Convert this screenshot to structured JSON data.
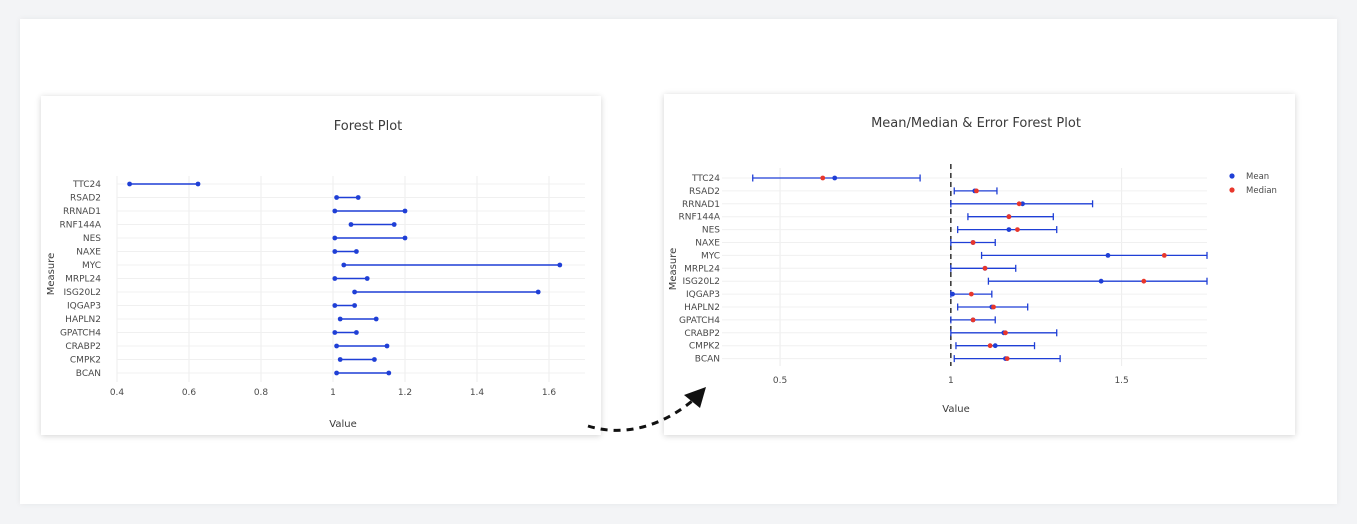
{
  "chart_data": [
    {
      "type": "forest",
      "title": "Forest Plot",
      "xlabel": "Value",
      "ylabel": "Measure",
      "xlim": [
        0.4,
        1.7
      ],
      "xticks": [
        0.4,
        0.6,
        0.8,
        1,
        1.2,
        1.4,
        1.6
      ],
      "xtick_labels": [
        "0.4",
        "0.6",
        "0.8",
        "1",
        "1.2",
        "1.4",
        "1.6"
      ],
      "grid": true,
      "color": "#1f3fd6",
      "rows": [
        {
          "label": "TTC24",
          "low": 0.435,
          "high": 0.625
        },
        {
          "label": "RSAD2",
          "low": 1.01,
          "high": 1.07
        },
        {
          "label": "RRNAD1",
          "low": 1.005,
          "high": 1.2
        },
        {
          "label": "RNF144A",
          "low": 1.05,
          "high": 1.17
        },
        {
          "label": "NES",
          "low": 1.005,
          "high": 1.2
        },
        {
          "label": "NAXE",
          "low": 1.005,
          "high": 1.065
        },
        {
          "label": "MYC",
          "low": 1.03,
          "high": 1.63
        },
        {
          "label": "MRPL24",
          "low": 1.005,
          "high": 1.095
        },
        {
          "label": "ISG20L2",
          "low": 1.06,
          "high": 1.57
        },
        {
          "label": "IQGAP3",
          "low": 1.005,
          "high": 1.06
        },
        {
          "label": "HAPLN2",
          "low": 1.02,
          "high": 1.12
        },
        {
          "label": "GPATCH4",
          "low": 1.005,
          "high": 1.065
        },
        {
          "label": "CRABP2",
          "low": 1.01,
          "high": 1.15
        },
        {
          "label": "CMPK2",
          "low": 1.02,
          "high": 1.115
        },
        {
          "label": "BCAN",
          "low": 1.01,
          "high": 1.155
        }
      ]
    },
    {
      "type": "forest",
      "title": "Mean/Median & Error Forest Plot",
      "xlabel": "Value",
      "ylabel": "Measure",
      "xlim": [
        0.33,
        1.75
      ],
      "xticks": [
        0.5,
        1,
        1.5
      ],
      "xtick_labels": [
        "0.5",
        "1",
        "1.5"
      ],
      "reference_line": 1,
      "grid": true,
      "legend": {
        "placement": "top-right",
        "items": [
          {
            "name": "Mean",
            "color": "#1f3fd6"
          },
          {
            "name": "Median",
            "color": "#e8372c"
          }
        ]
      },
      "rows": [
        {
          "label": "TTC24",
          "mean": 0.66,
          "median": 0.625,
          "low": 0.42,
          "high": 0.91
        },
        {
          "label": "RSAD2",
          "mean": 1.07,
          "median": 1.075,
          "low": 1.01,
          "high": 1.135
        },
        {
          "label": "RRNAD1",
          "mean": 1.21,
          "median": 1.2,
          "low": 1.0,
          "high": 1.415
        },
        {
          "label": "RNF144A",
          "mean": 1.17,
          "median": 1.17,
          "low": 1.05,
          "high": 1.3
        },
        {
          "label": "NES",
          "mean": 1.17,
          "median": 1.195,
          "low": 1.02,
          "high": 1.31
        },
        {
          "label": "NAXE",
          "mean": 1.065,
          "median": 1.065,
          "low": 1.0,
          "high": 1.13
        },
        {
          "label": "MYC",
          "mean": 1.46,
          "median": 1.625,
          "low": 1.09,
          "high": 1.835
        },
        {
          "label": "MRPL24",
          "mean": 1.1,
          "median": 1.1,
          "low": 1.0,
          "high": 1.19
        },
        {
          "label": "ISG20L2",
          "mean": 1.44,
          "median": 1.565,
          "low": 1.11,
          "high": 1.765
        },
        {
          "label": "IQGAP3",
          "mean": 1.005,
          "median": 1.06,
          "low": 1.0,
          "high": 1.12
        },
        {
          "label": "HAPLN2",
          "mean": 1.12,
          "median": 1.125,
          "low": 1.02,
          "high": 1.225
        },
        {
          "label": "GPATCH4",
          "mean": 1.065,
          "median": 1.065,
          "low": 1.0,
          "high": 1.13
        },
        {
          "label": "CRABP2",
          "mean": 1.155,
          "median": 1.16,
          "low": 1.0,
          "high": 1.31
        },
        {
          "label": "CMPK2",
          "mean": 1.13,
          "median": 1.115,
          "low": 1.015,
          "high": 1.245
        },
        {
          "label": "BCAN",
          "mean": 1.16,
          "median": 1.165,
          "low": 1.01,
          "high": 1.32
        }
      ]
    }
  ]
}
